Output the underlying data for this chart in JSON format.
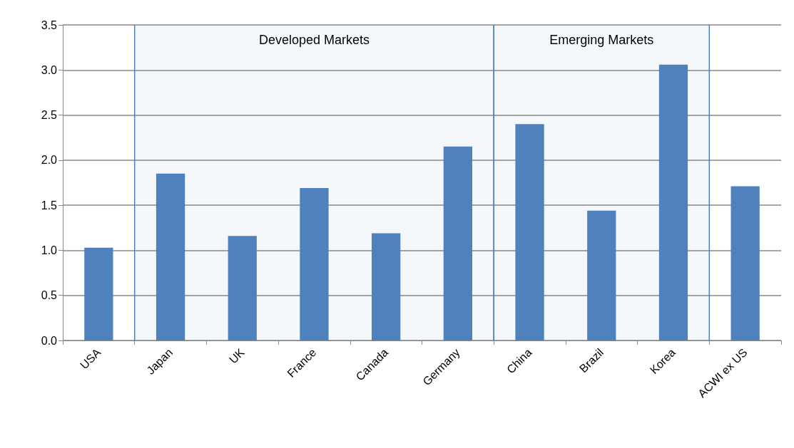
{
  "chart_data": {
    "type": "bar",
    "categories": [
      "USA",
      "Japan",
      "UK",
      "France",
      "Canada",
      "Germany",
      "China",
      "Brazil",
      "Korea",
      "ACWI ex US"
    ],
    "values": [
      1.03,
      1.85,
      1.16,
      1.69,
      1.19,
      2.15,
      2.4,
      1.44,
      3.06,
      1.71
    ],
    "color": "#4f81bd",
    "ylim": [
      0,
      3.5
    ],
    "yticks": [
      {
        "value": 0,
        "label": "0.0"
      },
      {
        "value": 0.5,
        "label": "0.5"
      },
      {
        "value": 1,
        "label": "1.0"
      },
      {
        "value": 1.5,
        "label": "1.5"
      },
      {
        "value": 2,
        "label": "2.0"
      },
      {
        "value": 2.5,
        "label": "2.5"
      },
      {
        "value": 3,
        "label": "3.0"
      },
      {
        "value": 3.5,
        "label": "3.5"
      }
    ],
    "grid": "y",
    "bands": [
      {
        "axis": "x",
        "from": "Japan",
        "to": "Germany",
        "label": "Developed Markets",
        "color": "#4f81bd"
      },
      {
        "axis": "x",
        "from": "China",
        "to": "Korea",
        "label": "Emerging Markets",
        "color": "#4f81bd"
      }
    ]
  }
}
